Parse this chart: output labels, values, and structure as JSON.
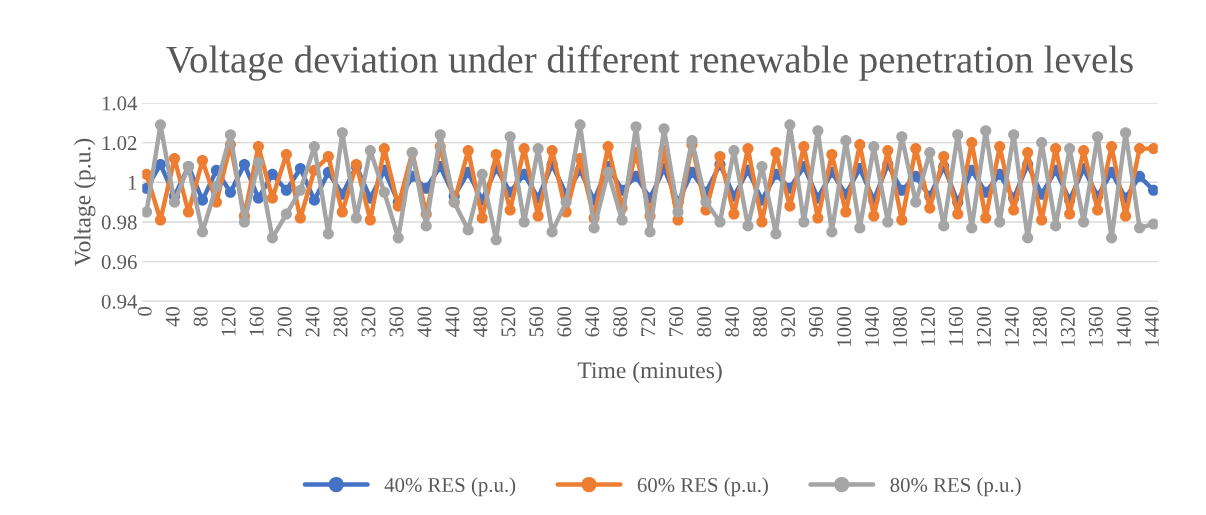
{
  "chart_data": {
    "type": "line",
    "title": "Voltage deviation under different renewable penetration levels",
    "xlabel": "Time (minutes)",
    "ylabel": "Voltage (p.u.)",
    "x": [
      0,
      20,
      40,
      60,
      80,
      100,
      120,
      140,
      160,
      180,
      200,
      220,
      240,
      260,
      280,
      300,
      320,
      340,
      360,
      380,
      400,
      420,
      440,
      460,
      480,
      500,
      520,
      540,
      560,
      580,
      600,
      620,
      640,
      660,
      680,
      700,
      720,
      740,
      760,
      780,
      800,
      820,
      840,
      860,
      880,
      900,
      920,
      940,
      960,
      980,
      1000,
      1020,
      1040,
      1060,
      1080,
      1100,
      1120,
      1140,
      1160,
      1180,
      1200,
      1220,
      1240,
      1260,
      1280,
      1300,
      1320,
      1340,
      1360,
      1380,
      1400,
      1420,
      1440
    ],
    "series": [
      {
        "name": "40% RES (p.u.)",
        "color": "#4472c4",
        "values": [
          0.997,
          1.009,
          0.993,
          1.008,
          0.991,
          1.006,
          0.995,
          1.009,
          0.992,
          1.004,
          0.996,
          1.007,
          0.991,
          1.005,
          0.994,
          1.008,
          0.992,
          1.006,
          0.99,
          1.003,
          0.997,
          1.008,
          0.993,
          1.005,
          0.991,
          1.007,
          0.995,
          1.004,
          0.992,
          1.009,
          0.994,
          1.006,
          0.991,
          1.008,
          0.996,
          1.003,
          0.992,
          1.007,
          0.99,
          1.005,
          0.995,
          1.009,
          0.993,
          1.006,
          0.991,
          1.004,
          0.997,
          1.008,
          0.992,
          1.005,
          0.994,
          1.007,
          0.991,
          1.009,
          0.996,
          1.003,
          0.993,
          1.008,
          0.99,
          1.006,
          0.995,
          1.004,
          0.992,
          1.009,
          0.994,
          1.006,
          0.991,
          1.007,
          0.993,
          1.005,
          0.992,
          1.003,
          0.996
        ]
      },
      {
        "name": "60% RES (p.u.)",
        "color": "#ed7d31",
        "values": [
          1.004,
          0.981,
          1.012,
          0.985,
          1.011,
          0.99,
          1.019,
          0.983,
          1.018,
          0.992,
          1.014,
          0.982,
          1.006,
          1.013,
          0.985,
          1.009,
          0.981,
          1.017,
          0.988,
          1.015,
          0.984,
          1.018,
          0.99,
          1.016,
          0.982,
          1.014,
          0.986,
          1.017,
          0.983,
          1.016,
          0.985,
          1.012,
          0.982,
          1.018,
          0.987,
          1.015,
          0.983,
          1.016,
          0.981,
          1.019,
          0.986,
          1.013,
          0.984,
          1.017,
          0.98,
          1.015,
          0.988,
          1.018,
          0.982,
          1.014,
          0.985,
          1.019,
          0.983,
          1.016,
          0.981,
          1.017,
          0.987,
          1.013,
          0.984,
          1.02,
          0.982,
          1.018,
          0.986,
          1.015,
          0.981,
          1.017,
          0.984,
          1.016,
          0.986,
          1.018,
          0.983,
          1.017,
          1.017
        ]
      },
      {
        "name": "80% RES (p.u.)",
        "color": "#a5a5a5",
        "values": [
          0.985,
          1.029,
          0.99,
          1.008,
          0.975,
          0.998,
          1.024,
          0.98,
          1.01,
          0.972,
          0.984,
          0.996,
          1.018,
          0.974,
          1.025,
          0.982,
          1.016,
          0.995,
          0.972,
          1.015,
          0.978,
          1.024,
          0.99,
          0.976,
          1.004,
          0.971,
          1.023,
          0.98,
          1.017,
          0.975,
          0.99,
          1.029,
          0.977,
          1.005,
          0.981,
          1.028,
          0.975,
          1.027,
          0.985,
          1.021,
          0.99,
          0.98,
          1.016,
          0.978,
          1.008,
          0.974,
          1.029,
          0.98,
          1.026,
          0.975,
          1.021,
          0.977,
          1.018,
          0.98,
          1.023,
          0.99,
          1.015,
          0.978,
          1.024,
          0.977,
          1.026,
          0.98,
          1.024,
          0.972,
          1.02,
          0.978,
          1.017,
          0.98,
          1.023,
          0.972,
          1.025,
          0.977,
          0.979
        ]
      }
    ],
    "xlim": [
      -6,
      1446
    ],
    "xticks": [
      0,
      40,
      80,
      120,
      160,
      200,
      240,
      280,
      320,
      360,
      400,
      440,
      480,
      520,
      560,
      600,
      640,
      680,
      720,
      760,
      800,
      840,
      880,
      920,
      960,
      1000,
      1040,
      1080,
      1120,
      1160,
      1200,
      1240,
      1280,
      1320,
      1360,
      1400,
      1440
    ],
    "ylim": [
      0.94,
      1.04
    ],
    "yticks": [
      0.94,
      0.96,
      0.98,
      1,
      1.02,
      1.04
    ],
    "grid": "y",
    "legend": "bottom",
    "marker": "circle",
    "line_style": "solid"
  }
}
